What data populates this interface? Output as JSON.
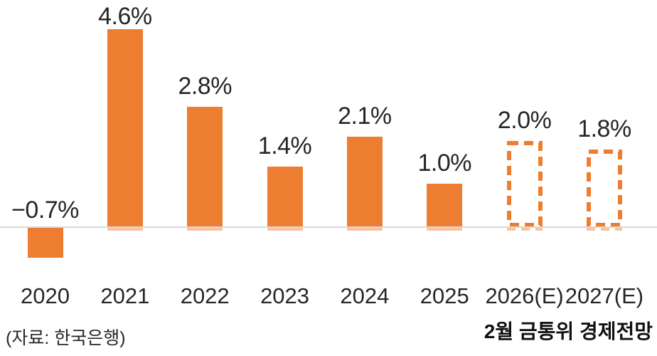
{
  "chart_data": {
    "type": "bar",
    "title": "",
    "categories": [
      "2020",
      "2021",
      "2022",
      "2023",
      "2024",
      "2025",
      "2026(E)",
      "2027(E)"
    ],
    "values": [
      -0.7,
      4.6,
      2.8,
      1.4,
      2.1,
      1.0,
      2.0,
      1.8
    ],
    "value_labels": [
      "−0.7%",
      "4.6%",
      "2.8%",
      "1.4%",
      "2.1%",
      "1.0%",
      "2.0%",
      "1.8%"
    ],
    "forecast_flags": [
      false,
      false,
      false,
      false,
      false,
      false,
      true,
      true
    ],
    "unit": "%",
    "xlabel": "",
    "ylabel": "",
    "ylim": [
      -1,
      5
    ],
    "grid": false,
    "legend_position": "none",
    "bar_color": "#ED7D31",
    "bar_stub_color": "rgba(237,125,49,0.45)",
    "axis_line_color": "#D9D9D9",
    "label_color": "#262626",
    "source_note": "(자료: 한국은행)",
    "annotation_right": "2월 금통위 경제전망"
  }
}
